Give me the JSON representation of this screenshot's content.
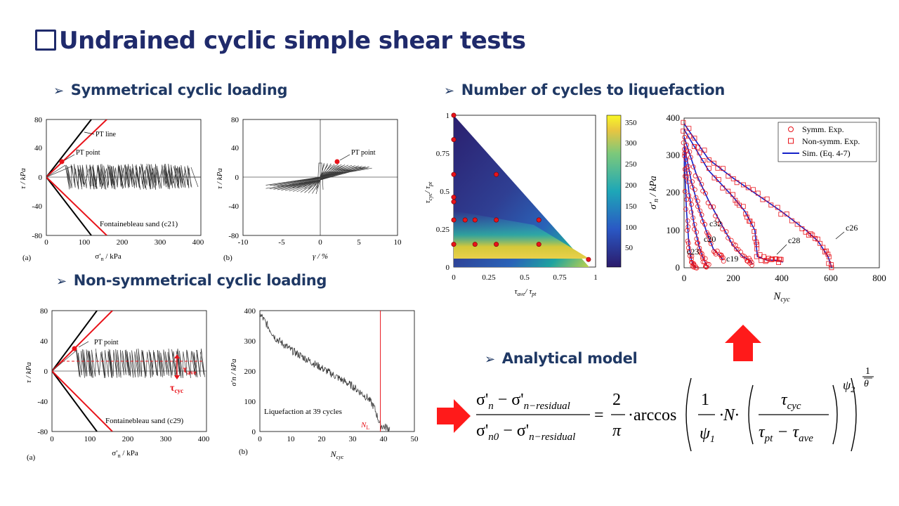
{
  "title": "Undrained cyclic simple shear tests",
  "sections": {
    "sym": "Symmetrical cyclic loading",
    "nonsym": "Non-symmetrical cyclic loading",
    "cycles": "Number of cycles to liquefaction",
    "model": "Analytical model"
  },
  "colors": {
    "title": "#1f2a6b",
    "red": "#e8131a",
    "blue": "#1420c8",
    "gray": "#3a3a3a"
  },
  "panels": {
    "sym_a": {
      "label": "(a)",
      "annotations": [
        "PT line",
        "PT point",
        "Fontainebleau sand (c21)"
      ],
      "xlabel_main": "σ′",
      "xlabel_sub": "n",
      "xlabel_rest": " / kPa",
      "ylabel": "τ / kPa",
      "xticks": [
        "0",
        "100",
        "200",
        "300",
        "400"
      ],
      "yticks": [
        "80",
        "40",
        "0",
        "-40",
        "-80"
      ]
    },
    "sym_b": {
      "label": "(b)",
      "annotations": [
        "PT point"
      ],
      "xlabel": "γ / %",
      "ylabel": "τ / kPa",
      "xticks": [
        "-10",
        "-5",
        "0",
        "5",
        "10"
      ],
      "yticks": [
        "80",
        "40",
        "0",
        "-40",
        "-80"
      ]
    },
    "non_a": {
      "label": "(a)",
      "annotations": [
        "PT point",
        "Fontainebleau sand (c29)"
      ],
      "tau_ave": "τ",
      "tau_ave_sub": "ave",
      "tau_cyc": "τ",
      "tau_cyc_sub": "cyc",
      "xlabel_main": "σ′",
      "xlabel_sub": "n",
      "xlabel_rest": " / kPa",
      "ylabel": "τ / kPa",
      "xticks": [
        "0",
        "100",
        "200",
        "300",
        "400"
      ],
      "yticks": [
        "80",
        "40",
        "0",
        "-40",
        "-80"
      ]
    },
    "non_b": {
      "label": "(b)",
      "annotation": "Liquefaction at 39 cycles",
      "nl_label": "N",
      "nl_sub": "L",
      "xlabel": "N",
      "xlabel_sub": "cyc",
      "ylabel": "σ′n / kPa",
      "xticks": [
        "0",
        "10",
        "20",
        "30",
        "40",
        "50"
      ],
      "yticks": [
        "400",
        "300",
        "200",
        "100",
        "0"
      ]
    },
    "heat": {
      "xlabel": "τ",
      "xlabel_sub1": "ave",
      "xlabel_mid": "/ τ",
      "xlabel_sub2": "pt",
      "ylabel": "τ",
      "ylabel_sub1": "cyc",
      "ylabel_mid": "/ τ",
      "ylabel_sub2": "pt",
      "xticks": [
        "0",
        "0.25",
        "0.5",
        "0.75",
        "1"
      ],
      "yticks": [
        "1",
        "0.75",
        "0.5",
        "0.25",
        "0"
      ],
      "cbticks": [
        "350",
        "300",
        "250",
        "200",
        "150",
        "100",
        "50"
      ]
    },
    "ncyc": {
      "xlabel": "N",
      "xlabel_sub": "cyc",
      "ylabel_main": "σ′",
      "ylabel_sub": "n",
      "ylabel_rest": " / kPa",
      "xticks": [
        "0",
        "200",
        "400",
        "600",
        "800"
      ],
      "yticks": [
        "400",
        "300",
        "200",
        "100",
        "0"
      ],
      "legend": [
        "Symm. Exp.",
        "Non-symm. Exp.",
        "Sim. (Eq. 4-7)"
      ],
      "curve_labels": [
        "c26",
        "c28",
        "c32",
        "c20",
        "c19",
        "c23"
      ]
    }
  },
  "equation": {
    "num_a": "σ'",
    "num_a_sub": "n",
    "minus": " − σ'",
    "num_b_sub": "n−residual",
    "den_a": "σ'",
    "den_a_sub": "n0",
    "den_b_sub": "n−residual",
    "eq": "=",
    "two": "2",
    "pi": "π",
    "arccos": "·arccos",
    "one": "1",
    "psi1": "ψ",
    "psi1_sub": "1",
    "N": "·N·",
    "tau_cyc": "τ",
    "tau_cyc_sub": "cyc",
    "tau_pt": "τ",
    "tau_pt_sub": "pt",
    "tau_ave": " − τ",
    "tau_ave_sub": "ave",
    "psi2": "ψ",
    "psi2_sub": "2",
    "exp_num": "1",
    "exp_den": "θ"
  },
  "chart_data": [
    {
      "type": "scatter",
      "title": "",
      "xlabel": "τave / τpt",
      "ylabel": "τcyc / τpt",
      "xlim": [
        0,
        1
      ],
      "ylim": [
        0,
        1
      ],
      "colorbar": {
        "min": 20,
        "max": 370,
        "ticks": [
          50,
          100,
          150,
          200,
          250,
          300,
          350
        ]
      },
      "points": [
        [
          0,
          1
        ],
        [
          0,
          0.84
        ],
        [
          0,
          0.61
        ],
        [
          0,
          0.46
        ],
        [
          0,
          0.43
        ],
        [
          0,
          0.31
        ],
        [
          0,
          0.15
        ],
        [
          0.08,
          0.31
        ],
        [
          0.15,
          0.31
        ],
        [
          0.3,
          0.61
        ],
        [
          0.3,
          0.31
        ],
        [
          0.6,
          0.31
        ],
        [
          0.15,
          0.15
        ],
        [
          0.3,
          0.15
        ],
        [
          0.6,
          0.15
        ],
        [
          0.95,
          0.05
        ]
      ]
    },
    {
      "type": "line",
      "xlabel": "Ncyc",
      "ylabel": "σ′n / kPa",
      "xlim": [
        0,
        800
      ],
      "ylim": [
        0,
        400
      ],
      "series": [
        {
          "name": "Sim. (Eq. 4-7)",
          "label": "c26",
          "x": [
            0,
            100,
            200,
            300,
            400,
            500,
            550,
            590,
            605
          ],
          "y": [
            385,
            290,
            240,
            195,
            150,
            100,
            70,
            30,
            0
          ]
        },
        {
          "label": "c28",
          "x": [
            0,
            100,
            200,
            250,
            290,
            300,
            340,
            380,
            405
          ],
          "y": [
            370,
            260,
            190,
            150,
            100,
            30,
            20,
            20,
            15
          ]
        },
        {
          "label": "c32",
          "x": [
            0,
            50,
            100,
            150,
            200,
            240,
            270,
            280
          ],
          "y": [
            350,
            250,
            180,
            120,
            60,
            30,
            20,
            10
          ]
        },
        {
          "label": "c20",
          "x": [
            0,
            30,
            60,
            90,
            120,
            150,
            160
          ],
          "y": [
            330,
            230,
            160,
            100,
            50,
            30,
            20
          ]
        },
        {
          "label": "c19",
          "x": [
            0,
            20,
            40,
            60,
            75,
            90,
            100
          ],
          "y": [
            320,
            200,
            120,
            60,
            30,
            10,
            0
          ]
        },
        {
          "label": "c23",
          "x": [
            0,
            10,
            20,
            30,
            40,
            50
          ],
          "y": [
            300,
            150,
            60,
            20,
            5,
            0
          ]
        }
      ]
    },
    {
      "type": "line",
      "xlabel": "Ncyc",
      "ylabel": "σ′n / kPa",
      "xlim": [
        0,
        50
      ],
      "ylim": [
        0,
        400
      ],
      "series": [
        {
          "label": "Liquefaction at 39 cycles",
          "x": [
            0,
            5,
            10,
            15,
            20,
            25,
            30,
            35,
            37,
            39,
            42
          ],
          "y": [
            390,
            310,
            270,
            240,
            210,
            180,
            150,
            110,
            80,
            20,
            10
          ]
        }
      ],
      "vline": 39
    }
  ]
}
